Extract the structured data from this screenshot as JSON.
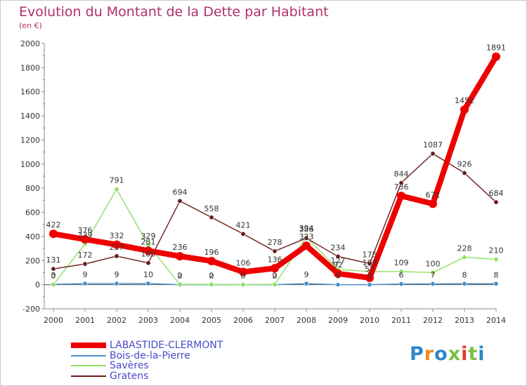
{
  "title": "Evolution du Montant de la Dette par Habitant",
  "subtitle": "(en €)",
  "logo_text": "Proxiti",
  "chart_data": {
    "type": "line",
    "x": [
      "2000",
      "2001",
      "2002",
      "2003",
      "2004",
      "2005",
      "2006",
      "2007",
      "2008",
      "2009",
      "2010",
      "2011",
      "2012",
      "2013",
      "2014"
    ],
    "ylim": [
      -200,
      2000
    ],
    "yticks": [
      -200,
      0,
      200,
      400,
      600,
      800,
      1000,
      1200,
      1400,
      1600,
      1800,
      2000
    ],
    "grid": false,
    "legend_position": "bottom-left",
    "series": [
      {
        "name": "LABASTIDE-CLERMONT",
        "color": "#ee0000",
        "values": [
          422,
          376,
          332,
          281,
          236,
          196,
          106,
          136,
          323,
          92,
          57,
          736,
          671,
          1452,
          1891
        ],
        "labels": [
          "422",
          "376",
          "332",
          "281",
          "236",
          "196",
          "106",
          "136",
          "323",
          "92",
          "57",
          "736",
          "671",
          "1452",
          "1891"
        ]
      },
      {
        "name": "Bois-de-la-Pierre",
        "color": "#4a90c8",
        "values": [
          3,
          9,
          9,
          10,
          0,
          0,
          0,
          0,
          9,
          0,
          0,
          6,
          7,
          8,
          8
        ],
        "labels": [
          "3",
          "9",
          "9",
          "10",
          "0",
          "0",
          "0",
          "0",
          "9",
          "0",
          "0",
          "6",
          "7",
          "8",
          "8"
        ]
      },
      {
        "name": "Savères",
        "color": "#90e060",
        "values": [
          0,
          339,
          791,
          329,
          2,
          2,
          0,
          2,
          394,
          127,
          109,
          109,
          100,
          228,
          210
        ],
        "labels": [
          "0",
          "339",
          "791",
          "329",
          "2",
          "2",
          "0",
          "2",
          "394",
          "127",
          "109",
          "109",
          "100",
          "228",
          "210"
        ]
      },
      {
        "name": "Gratens",
        "color": "#6b1a1a",
        "values": [
          131,
          172,
          237,
          180,
          694,
          558,
          421,
          278,
          386,
          234,
          175,
          844,
          1087,
          926,
          684
        ],
        "labels": [
          "131",
          "172",
          "237",
          "180",
          "694",
          "558",
          "421",
          "278",
          "386",
          "234",
          "175",
          "844",
          "1087",
          "926",
          "684"
        ]
      }
    ]
  }
}
